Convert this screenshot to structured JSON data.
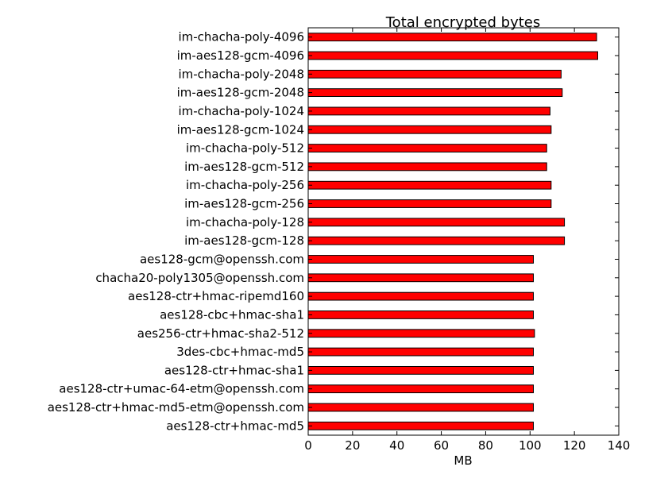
{
  "chart_data": {
    "type": "bar",
    "orientation": "horizontal",
    "title": "Total encrypted bytes",
    "xlabel": "MB",
    "ylabel": "",
    "xlim": [
      0,
      140
    ],
    "xticks": [
      "0",
      "20",
      "40",
      "60",
      "80",
      "100",
      "120",
      "140"
    ],
    "grid": false,
    "bar_color": "#ff0000",
    "categories": [
      "im-chacha-poly-4096",
      "im-aes128-gcm-4096",
      "im-chacha-poly-2048",
      "im-aes128-gcm-2048",
      "im-chacha-poly-1024",
      "im-aes128-gcm-1024",
      "im-chacha-poly-512",
      "im-aes128-gcm-512",
      "im-chacha-poly-256",
      "im-aes128-gcm-256",
      "im-chacha-poly-128",
      "im-aes128-gcm-128",
      "aes128-gcm@openssh.com",
      "chacha20-poly1305@openssh.com",
      "aes128-ctr+hmac-ripemd160",
      "aes128-cbc+hmac-sha1",
      "aes256-ctr+hmac-sha2-512",
      "3des-cbc+hmac-md5",
      "aes128-ctr+hmac-sha1",
      "aes128-ctr+umac-64-etm@openssh.com",
      "aes128-ctr+hmac-md5-etm@openssh.com",
      "aes128-ctr+hmac-md5"
    ],
    "values": [
      130,
      130.5,
      114,
      114.5,
      109,
      109.5,
      107.5,
      107.5,
      109.5,
      109.5,
      115.5,
      115.5,
      101.5,
      101.5,
      101.5,
      101.5,
      102,
      101.5,
      101.5,
      101.5,
      101.5,
      101.5
    ]
  }
}
